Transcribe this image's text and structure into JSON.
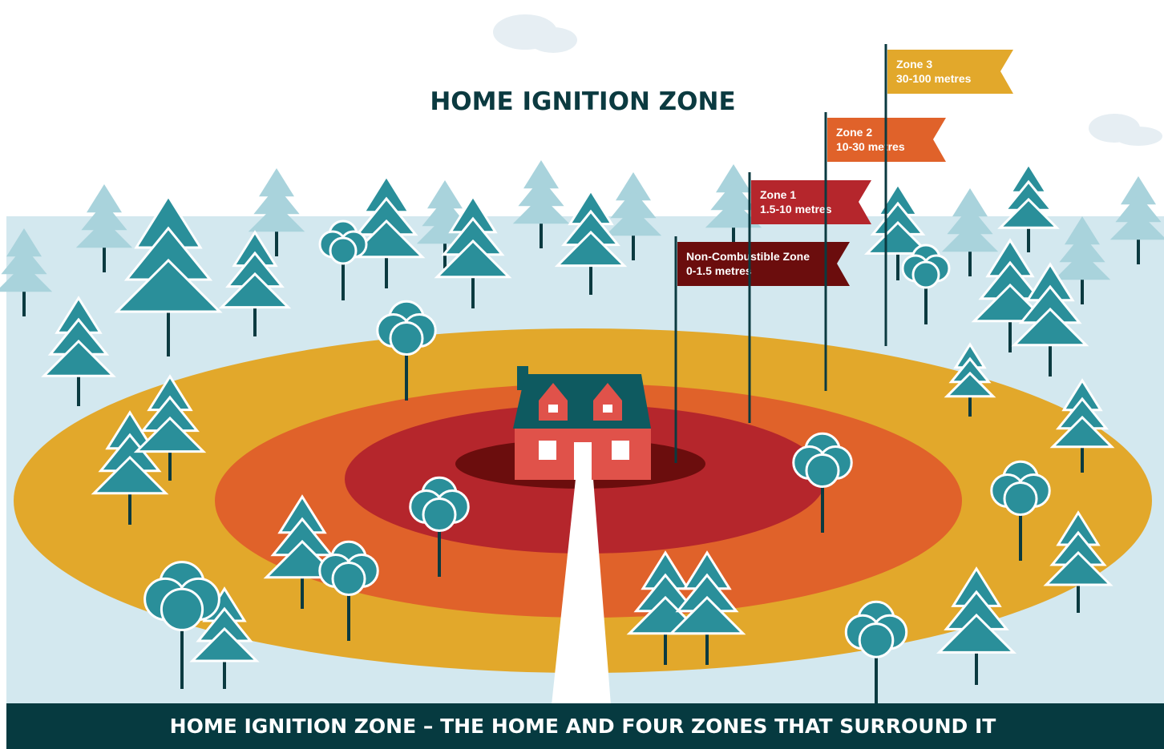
{
  "title": "HOME IGNITION ZONE",
  "zones": [
    {
      "name": "Non-Combustible Zone",
      "range": "0-1.5 metres"
    },
    {
      "name": "Zone 1",
      "range": "1.5-10 metres"
    },
    {
      "name": "Zone 2",
      "range": "10-30 metres"
    },
    {
      "name": "Zone 3",
      "range": "30-100 metres"
    }
  ],
  "caption": "HOME IGNITION ZONE – THE HOME AND FOUR ZONES THAT SURROUND IT"
}
